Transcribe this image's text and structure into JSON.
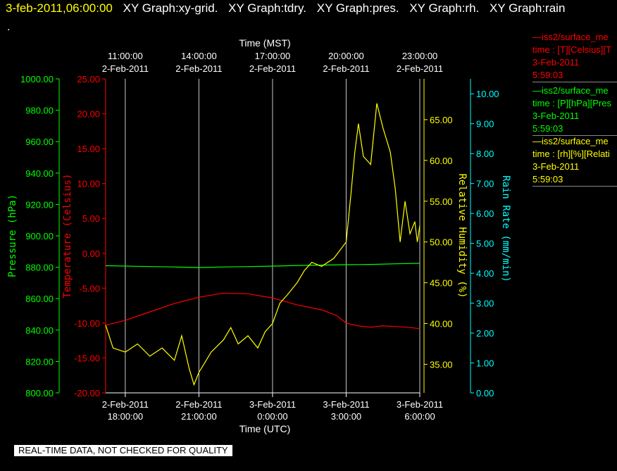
{
  "header": {
    "datetime": "3-feb-2011,06:00:00",
    "graph_titles": [
      "XY Graph:xy-grid.",
      "XY Graph:tdry.",
      "XY Graph:pres.",
      "XY Graph:rh.",
      "XY Graph:rain"
    ],
    "dot": "."
  },
  "footer": "REAL-TIME DATA, NOT CHECKED FOR QUALITY",
  "legend": [
    {
      "name": "—iss2/surface_me",
      "line2": "time : [T][Celsius][T",
      "line3": "3-Feb-2011",
      "line4": "5:59:03",
      "color": "#ff0000"
    },
    {
      "name": "—iss2/surface_me",
      "line2": "time : [P][hPa][Pres",
      "line3": "3-Feb-2011",
      "line4": "5:59:03",
      "color": "#00ff00"
    },
    {
      "name": "—iss2/surface_me",
      "line2": "time : [rh][%][Relati",
      "line3": "3-Feb-2011",
      "line4": "5:59:03",
      "color": "#ffff00"
    }
  ],
  "chart_data": {
    "type": "line",
    "top_axis_title": "Time (MST)",
    "bottom_axis_title": "Time (UTC)",
    "x_range_hours_utc": [
      17.2,
      30.0
    ],
    "top_ticks": [
      {
        "hour": 18,
        "line1": "11:00:00",
        "line2": "2-Feb-2011"
      },
      {
        "hour": 21,
        "line1": "14:00:00",
        "line2": "2-Feb-2011"
      },
      {
        "hour": 24,
        "line1": "17:00:00",
        "line2": "2-Feb-2011"
      },
      {
        "hour": 27,
        "line1": "20:00:00",
        "line2": "2-Feb-2011"
      },
      {
        "hour": 30,
        "line1": "23:00:00",
        "line2": "2-Feb-2011"
      }
    ],
    "bottom_ticks": [
      {
        "hour": 18,
        "line1": "2-Feb-2011",
        "line2": "18:00:00"
      },
      {
        "hour": 21,
        "line1": "2-Feb-2011",
        "line2": "21:00:00"
      },
      {
        "hour": 24,
        "line1": "3-Feb-2011",
        "line2": "0:00:00"
      },
      {
        "hour": 27,
        "line1": "3-Feb-2011",
        "line2": "3:00:00"
      },
      {
        "hour": 30,
        "line1": "3-Feb-2011",
        "line2": "6:00:00"
      }
    ],
    "axes": {
      "pressure": {
        "label": "Pressure (hPa)",
        "color": "#00ff00",
        "range": [
          800,
          1000
        ],
        "ticks": [
          "800.00",
          "820.00",
          "840.00",
          "860.00",
          "880.00",
          "900.00",
          "920.00",
          "940.00",
          "960.00",
          "980.00",
          "1000.00"
        ]
      },
      "temperature": {
        "label": "Temperature (Celsius)",
        "color": "#ff0000",
        "range": [
          -20,
          25
        ],
        "ticks": [
          "-20.00",
          "-15.00",
          "-10.00",
          "-5.00",
          "0.00",
          "5.00",
          "10.00",
          "15.00",
          "20.00",
          "25.00"
        ]
      },
      "humidity": {
        "label": "Relative Humidity (%)",
        "color": "#ffff00",
        "range": [
          31.5,
          70.0
        ],
        "ticks": [
          "35.00",
          "40.00",
          "45.00",
          "50.00",
          "55.00",
          "60.00",
          "65.00"
        ]
      },
      "rain": {
        "label": "Rain Rate (mm/min)",
        "color": "#00ffff",
        "range": [
          0,
          10.5
        ],
        "ticks": [
          "0.00",
          "1.00",
          "2.00",
          "3.00",
          "4.00",
          "5.00",
          "6.00",
          "7.00",
          "8.00",
          "9.00",
          "10.00"
        ]
      }
    },
    "series": [
      {
        "axis": "temperature",
        "color": "#ff0000",
        "points": [
          [
            17.2,
            -10.3
          ],
          [
            18.0,
            -9.6
          ],
          [
            19.0,
            -8.4
          ],
          [
            20.0,
            -7.2
          ],
          [
            21.0,
            -6.3
          ],
          [
            22.0,
            -5.7
          ],
          [
            23.0,
            -5.8
          ],
          [
            24.0,
            -6.4
          ],
          [
            25.0,
            -7.4
          ],
          [
            26.0,
            -8.1
          ],
          [
            26.6,
            -8.9
          ],
          [
            27.0,
            -10.0
          ],
          [
            27.5,
            -10.4
          ],
          [
            28.0,
            -10.6
          ],
          [
            28.5,
            -10.4
          ],
          [
            29.0,
            -10.5
          ],
          [
            29.5,
            -10.6
          ],
          [
            30.0,
            -10.8
          ]
        ]
      },
      {
        "axis": "pressure",
        "color": "#00ff00",
        "points": [
          [
            17.2,
            881
          ],
          [
            18.5,
            880.6
          ],
          [
            20.0,
            880.2
          ],
          [
            21.0,
            879.8
          ],
          [
            22.0,
            880.2
          ],
          [
            23.0,
            880.4
          ],
          [
            24.0,
            880.7
          ],
          [
            25.0,
            881.1
          ],
          [
            26.0,
            881.4
          ],
          [
            27.0,
            881.6
          ],
          [
            28.0,
            881.8
          ],
          [
            29.0,
            882.2
          ],
          [
            30.0,
            882.5
          ]
        ]
      },
      {
        "axis": "humidity",
        "color": "#ffff00",
        "points": [
          [
            17.2,
            39.8
          ],
          [
            17.5,
            37.0
          ],
          [
            18.0,
            36.5
          ],
          [
            18.5,
            37.5
          ],
          [
            19.0,
            36.0
          ],
          [
            19.5,
            37.0
          ],
          [
            20.0,
            35.5
          ],
          [
            20.3,
            38.5
          ],
          [
            20.6,
            34.5
          ],
          [
            20.8,
            32.5
          ],
          [
            21.0,
            34.0
          ],
          [
            21.5,
            36.5
          ],
          [
            22.0,
            38.0
          ],
          [
            22.3,
            39.5
          ],
          [
            22.6,
            37.5
          ],
          [
            23.0,
            38.5
          ],
          [
            23.4,
            37.0
          ],
          [
            23.7,
            39.0
          ],
          [
            24.0,
            40.0
          ],
          [
            24.3,
            42.5
          ],
          [
            24.6,
            43.5
          ],
          [
            25.0,
            45.0
          ],
          [
            25.3,
            46.5
          ],
          [
            25.6,
            47.5
          ],
          [
            26.0,
            47.0
          ],
          [
            26.5,
            48.0
          ],
          [
            27.0,
            50.0
          ],
          [
            27.2,
            56.0
          ],
          [
            27.35,
            61.0
          ],
          [
            27.5,
            64.5
          ],
          [
            27.7,
            60.5
          ],
          [
            28.0,
            59.5
          ],
          [
            28.25,
            67.0
          ],
          [
            28.5,
            64.0
          ],
          [
            28.8,
            61.0
          ],
          [
            29.0,
            56.5
          ],
          [
            29.2,
            50.0
          ],
          [
            29.4,
            55.0
          ],
          [
            29.6,
            51.0
          ],
          [
            29.8,
            52.5
          ],
          [
            29.9,
            50.0
          ],
          [
            30.0,
            52.0
          ]
        ]
      }
    ]
  }
}
